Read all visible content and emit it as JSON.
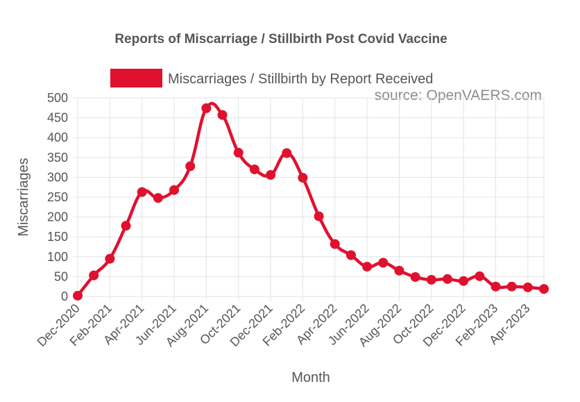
{
  "chart_data": {
    "type": "line",
    "title": "Reports of Miscarriage / Stillbirth Post Covid Vaccine",
    "source_note": "source: OpenVAERS.com",
    "xlabel": "Month",
    "ylabel": "Miscarriages",
    "ylim": [
      0,
      500
    ],
    "y_ticks": [
      0,
      50,
      100,
      150,
      200,
      250,
      300,
      350,
      400,
      450,
      500
    ],
    "x_tick_labels": [
      "Dec-2020",
      "Feb-2021",
      "Apr-2021",
      "Jun-2021",
      "Aug-2021",
      "Oct-2021",
      "Dec-2021",
      "Feb-2022",
      "Apr-2022",
      "Jun-2022",
      "Aug-2022",
      "Oct-2022",
      "Dec-2022",
      "Feb-2023",
      "Apr-2023"
    ],
    "grid": true,
    "legend_position": "top",
    "categories": [
      "Dec-2020",
      "Jan-2021",
      "Feb-2021",
      "Mar-2021",
      "Apr-2021",
      "May-2021",
      "Jun-2021",
      "Jul-2021",
      "Aug-2021",
      "Sep-2021",
      "Oct-2021",
      "Nov-2021",
      "Dec-2021",
      "Jan-2022",
      "Feb-2022",
      "Mar-2022",
      "Apr-2022",
      "May-2022",
      "Jun-2022",
      "Jul-2022",
      "Aug-2022",
      "Sep-2022",
      "Oct-2022",
      "Nov-2022",
      "Dec-2022",
      "Jan-2023",
      "Feb-2023",
      "Mar-2023",
      "Apr-2023",
      "May-2023"
    ],
    "series": [
      {
        "name": "Miscarriages / Stillbirth by Report Received",
        "color": "#e0112f",
        "values": [
          2,
          53,
          95,
          178,
          263,
          248,
          268,
          328,
          474,
          457,
          362,
          320,
          306,
          361,
          299,
          202,
          132,
          104,
          75,
          85,
          65,
          49,
          42,
          44,
          39,
          51,
          25,
          25,
          23,
          19
        ]
      }
    ]
  }
}
